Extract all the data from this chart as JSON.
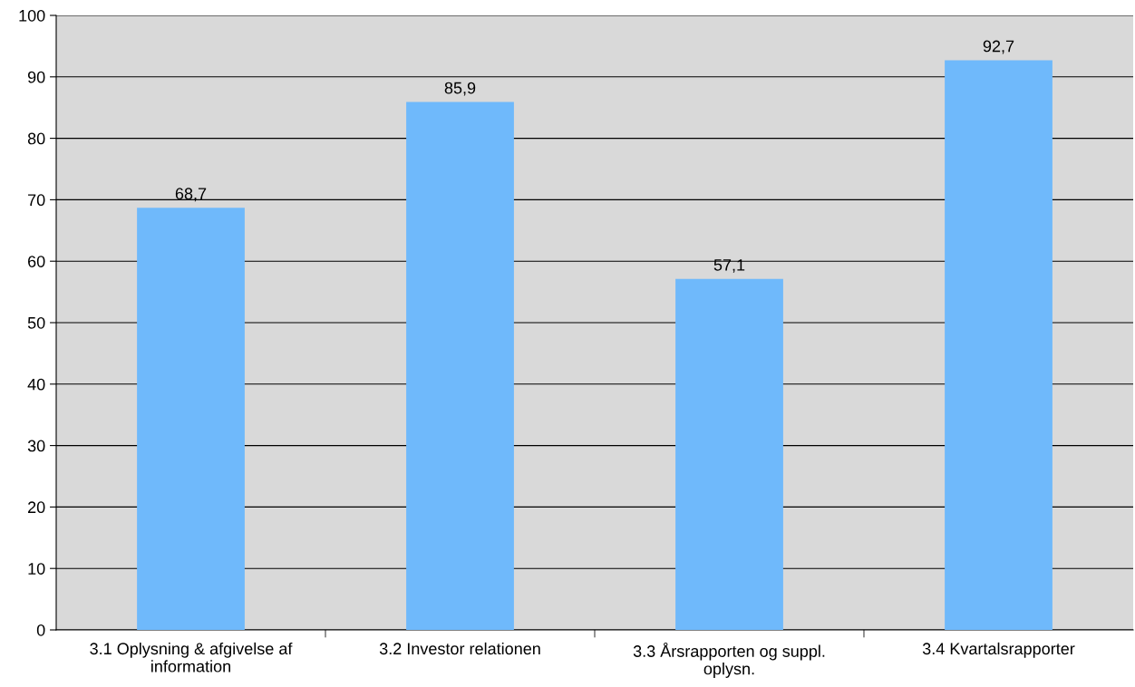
{
  "chart_data": {
    "type": "bar",
    "categories": [
      "3.1 Oplysning & afgivelse af\ninformation",
      "3.2 Investor relationen",
      "3.3 Årsrapporten og suppl.\noplysn.",
      "3.4 Kvartalsrapporter"
    ],
    "values": [
      68.7,
      85.9,
      57.1,
      92.7
    ],
    "value_labels": [
      "68,7",
      "85,9",
      "57,1",
      "92,7"
    ],
    "color": "#6fb9fb",
    "ylim": [
      0,
      100
    ],
    "yticks": [
      0,
      10,
      20,
      30,
      40,
      50,
      60,
      70,
      80,
      90,
      100
    ],
    "grid": "y"
  }
}
